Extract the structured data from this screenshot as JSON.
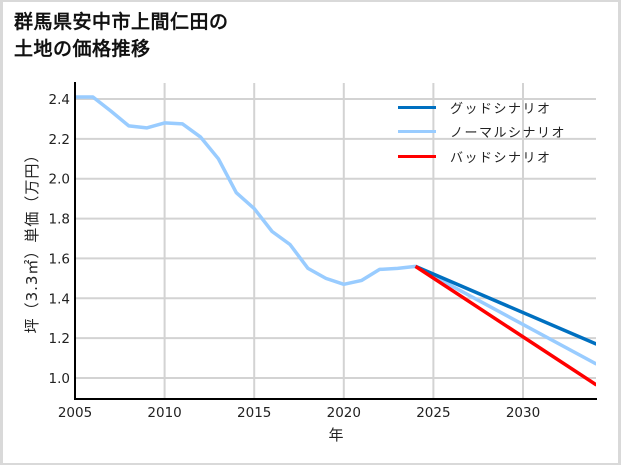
{
  "title": "群馬県安中市上間仁田の\n土地の価格推移",
  "chart_data": {
    "type": "line",
    "title": "群馬県安中市上間仁田の土地の価格推移",
    "xlabel": "年",
    "ylabel": "坪（3.3㎡）単価（万円）",
    "xlim": [
      2005,
      2034.1
    ],
    "ylim": [
      0.9,
      2.485
    ],
    "x_ticks": [
      2005,
      2010,
      2015,
      2020,
      2025,
      2030
    ],
    "y_ticks": [
      1.0,
      1.2,
      1.4,
      1.6,
      1.8,
      2.0,
      2.2,
      2.4
    ],
    "y_tick_labels": [
      "1.0",
      "1.2",
      "1.4",
      "1.6",
      "1.8",
      "2.0",
      "2.2",
      "2.4"
    ],
    "grid": true,
    "legend_position": "upper right",
    "series": [
      {
        "name": "グッドシナリオ",
        "color": "#0070c0",
        "x": [
          2024,
          2034.1
        ],
        "values": [
          1.56,
          1.17
        ]
      },
      {
        "name": "ノーマルシナリオ",
        "color": "#99ccff",
        "x": [
          2005,
          2006,
          2007,
          2008,
          2009,
          2010,
          2011,
          2012,
          2013,
          2014,
          2015,
          2016,
          2017,
          2018,
          2019,
          2020,
          2021,
          2022,
          2023,
          2024,
          2034.1
        ],
        "values": [
          2.41,
          2.41,
          2.34,
          2.265,
          2.255,
          2.28,
          2.275,
          2.21,
          2.1,
          1.93,
          1.85,
          1.735,
          1.67,
          1.55,
          1.5,
          1.47,
          1.49,
          1.545,
          1.55,
          1.56,
          1.07
        ]
      },
      {
        "name": "バッドシナリオ",
        "color": "#ff0000",
        "x": [
          2024,
          2034.1
        ],
        "values": [
          1.56,
          0.965
        ]
      }
    ]
  }
}
